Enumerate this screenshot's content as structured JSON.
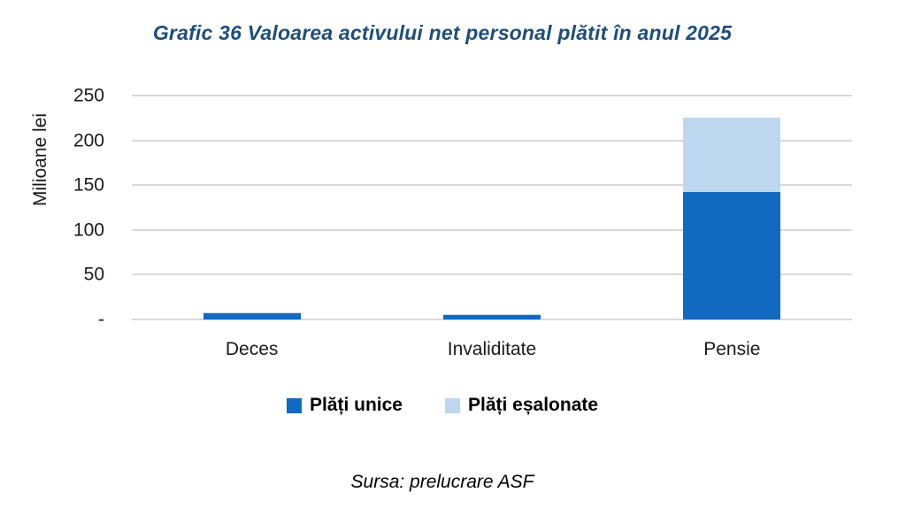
{
  "title": "Grafic 36 Valoarea activului net personal plătit în anul 2025",
  "source": "Sursa: prelucrare ASF",
  "colors": {
    "title": "#1F4E79",
    "gridline": "#D9D9D9",
    "series_dark_blue": "#1169C0",
    "series_light_blue": "#BDD7EE"
  },
  "chart_data": {
    "type": "bar",
    "stacked": true,
    "title": "Grafic 36 Valoarea activului net personal plătit în anul 2025",
    "categories": [
      "Deces",
      "Invaliditate",
      "Pensie"
    ],
    "series": [
      {
        "name": "Plăți unice",
        "color": "#1169C0",
        "values": [
          7,
          5,
          142
        ]
      },
      {
        "name": "Plăți eșalonate",
        "color": "#BDD7EE",
        "values": [
          1,
          1,
          83
        ]
      }
    ],
    "xlabel": "",
    "ylabel": "Milioane lei",
    "ylim": [
      0,
      250
    ],
    "yticks": [
      0,
      50,
      100,
      150,
      200,
      250
    ],
    "ytick_labels": [
      "-",
      "50",
      "100",
      "150",
      "200",
      "250"
    ],
    "grid": true,
    "legend_position": "bottom"
  }
}
